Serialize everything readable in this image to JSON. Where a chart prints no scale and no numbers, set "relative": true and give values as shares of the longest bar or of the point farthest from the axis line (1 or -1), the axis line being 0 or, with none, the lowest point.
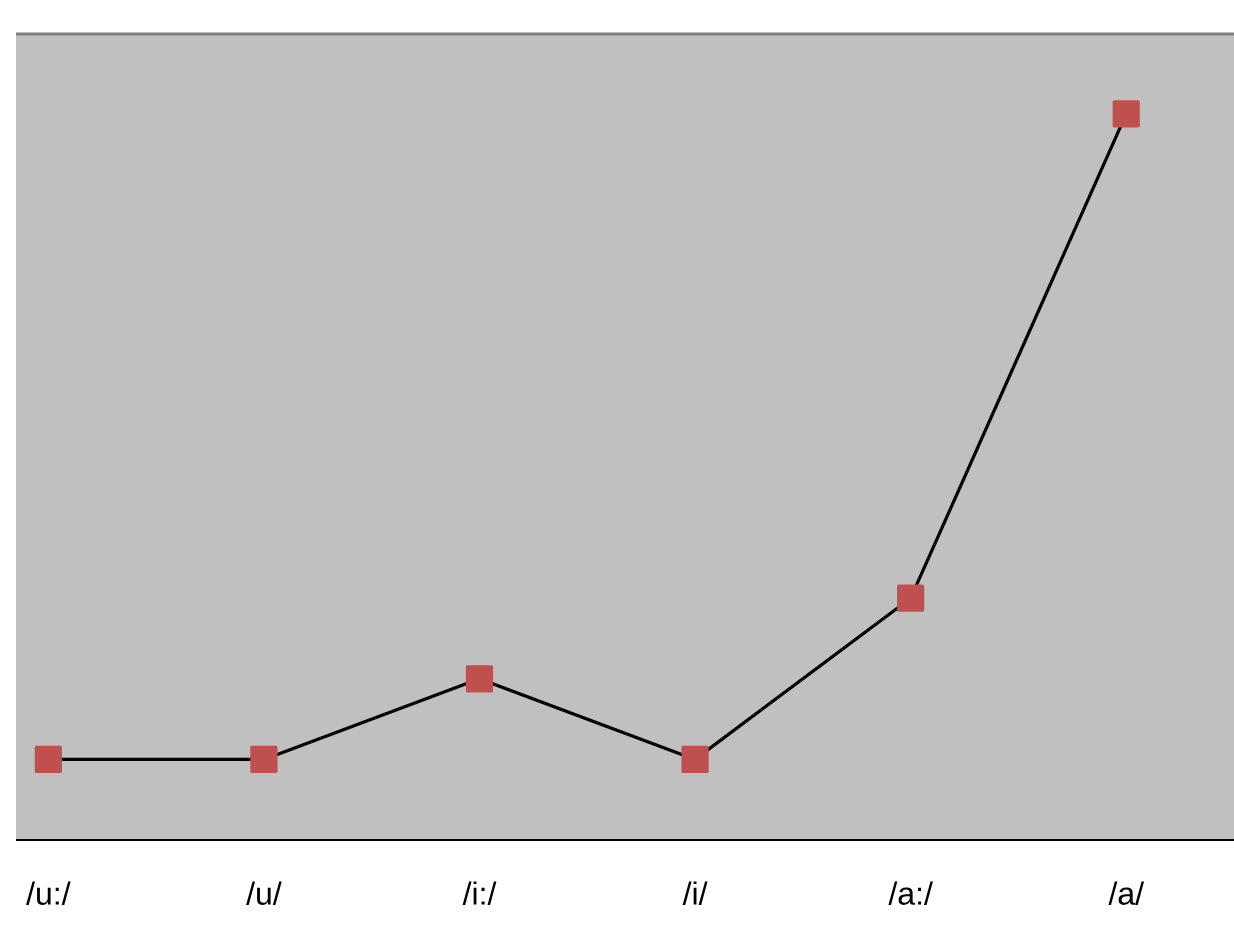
{
  "chart_data": {
    "type": "line",
    "relative": true,
    "categories": [
      "/u:/",
      "/u/",
      "/i:/",
      "/i/",
      "/a:/",
      "/a/"
    ],
    "series": [
      {
        "color": "#c0504d",
        "values": [
          0.111,
          0.111,
          0.222,
          0.111,
          0.333,
          1
        ]
      }
    ],
    "marker": "square",
    "line_style": "solid"
  }
}
